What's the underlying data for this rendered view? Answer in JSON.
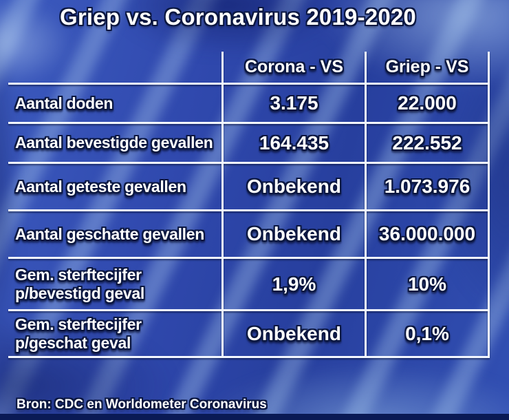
{
  "title": "Griep vs. Coronavirus 2019-2020",
  "source": "Bron: CDC en Worldometer Coronavirus",
  "table": {
    "columns": [
      "Corona - VS",
      "Griep - VS"
    ],
    "rows": [
      {
        "label": "Aantal doden",
        "corona": "3.175",
        "griep": "22.000"
      },
      {
        "label": "Aantal bevestigde gevallen",
        "corona": "164.435",
        "griep": "222.552"
      },
      {
        "label": "Aantal geteste gevallen",
        "corona": "Onbekend",
        "griep": "1.073.976"
      },
      {
        "label": "Aantal geschatte gevallen",
        "corona": "Onbekend",
        "griep": "36.000.000"
      },
      {
        "label": "Gem. sterftecijfer\np/bevestigd geval",
        "corona": "1,9%",
        "griep": "10%"
      },
      {
        "label": "Gem. sterftecijfer\np/geschat geval",
        "corona": "Onbekend",
        "griep": "0,1%"
      }
    ]
  },
  "chart_data": {
    "type": "table",
    "title": "Griep vs. Coronavirus 2019-2020",
    "columns": [
      "",
      "Corona - VS",
      "Griep - VS"
    ],
    "rows": [
      [
        "Aantal doden",
        "3.175",
        "22.000"
      ],
      [
        "Aantal bevestigde gevallen",
        "164.435",
        "222.552"
      ],
      [
        "Aantal geteste gevallen",
        "Onbekend",
        "1.073.976"
      ],
      [
        "Aantal geschatte gevallen",
        "Onbekend",
        "36.000.000"
      ],
      [
        "Gem. sterftecijfer p/bevestigd geval",
        "1,9%",
        "10%"
      ],
      [
        "Gem. sterftecijfer p/geschat geval",
        "Onbekend",
        "0,1%"
      ]
    ],
    "source": "Bron: CDC en Worldometer Coronavirus"
  },
  "colors": {
    "background_blue": "#2f4aac",
    "grid_line": "#f3f7ff",
    "text": "#ffffff",
    "text_outline": "#0b1740",
    "bottom_bar": "#0a1a55"
  }
}
